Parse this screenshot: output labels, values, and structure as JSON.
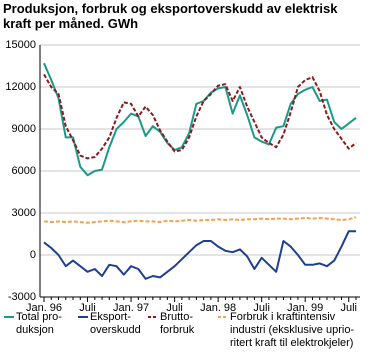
{
  "chart_data": {
    "type": "line",
    "title": "Produksjon, forbruk og eksportoverskudd av elektrisk\nkraft per måned. GWh",
    "categories": [
      "Jan. 96",
      null,
      null,
      null,
      null,
      null,
      "Juli",
      null,
      null,
      null,
      null,
      null,
      "Jan. 97",
      null,
      null,
      null,
      null,
      null,
      "Juli",
      null,
      null,
      null,
      null,
      null,
      "Jan. 98",
      null,
      null,
      null,
      null,
      null,
      "Juli",
      null,
      null,
      null,
      null,
      null,
      "Jan. 99",
      null,
      null,
      null,
      null,
      null,
      "Juli",
      null
    ],
    "series": [
      {
        "name": "Total pro-\nduksjon",
        "color": "#1b9a8c",
        "dashed": false,
        "values": [
          13700,
          12500,
          11200,
          8400,
          8400,
          6300,
          5700,
          6000,
          6100,
          7700,
          9000,
          9500,
          10100,
          9900,
          8500,
          9200,
          8800,
          8000,
          7500,
          7700,
          8700,
          10800,
          11000,
          11600,
          11900,
          12000,
          10100,
          11400,
          10000,
          8400,
          8100,
          7900,
          9100,
          9200,
          10800,
          11500,
          11800,
          12000,
          11000,
          11100,
          9500,
          9000,
          9400,
          9800
        ]
      },
      {
        "name": "Eksport-\noverskudd",
        "color": "#1f3f8f",
        "dashed": false,
        "values": [
          900,
          500,
          0,
          -800,
          -400,
          -800,
          -1200,
          -1000,
          -1500,
          -700,
          -800,
          -1400,
          -800,
          -1000,
          -1700,
          -1500,
          -1600,
          -1200,
          -800,
          -300,
          200,
          700,
          1000,
          1000,
          600,
          300,
          200,
          400,
          -100,
          -1000,
          -200,
          -700,
          -1200,
          1000,
          600,
          0,
          -700,
          -700,
          -600,
          -800,
          -400,
          600,
          1700,
          1700
        ]
      },
      {
        "name": "Brutto-\nforbruk",
        "color": "#8b1a1a",
        "dashed": true,
        "values": [
          12900,
          12000,
          11500,
          9200,
          8200,
          7100,
          6900,
          7000,
          7600,
          8400,
          9800,
          10900,
          10800,
          9900,
          10600,
          10000,
          8900,
          8100,
          7400,
          7500,
          8400,
          9900,
          11000,
          11500,
          12100,
          12200,
          11000,
          12000,
          10600,
          9500,
          8400,
          8000,
          7700,
          8600,
          10200,
          12000,
          12500,
          12700,
          11700,
          10000,
          9000,
          8300,
          7600,
          8000
        ]
      },
      {
        "name": "Forbruk i kraftintensiv\nindustri (eksklusive uprio-\nritert kraft til elektrokjeler)",
        "color": "#f4a24c",
        "dashed": true,
        "values": [
          2400,
          2350,
          2400,
          2350,
          2400,
          2350,
          2300,
          2350,
          2400,
          2450,
          2400,
          2350,
          2400,
          2450,
          2400,
          2400,
          2350,
          2450,
          2400,
          2450,
          2500,
          2450,
          2500,
          2500,
          2550,
          2500,
          2550,
          2500,
          2550,
          2550,
          2600,
          2550,
          2600,
          2600,
          2550,
          2600,
          2650,
          2600,
          2650,
          2600,
          2550,
          2500,
          2550,
          2700
        ]
      }
    ],
    "ylim": [
      -3000,
      15000
    ],
    "yticks": [
      -3000,
      0,
      3000,
      6000,
      9000,
      12000,
      15000
    ],
    "grid": true
  }
}
